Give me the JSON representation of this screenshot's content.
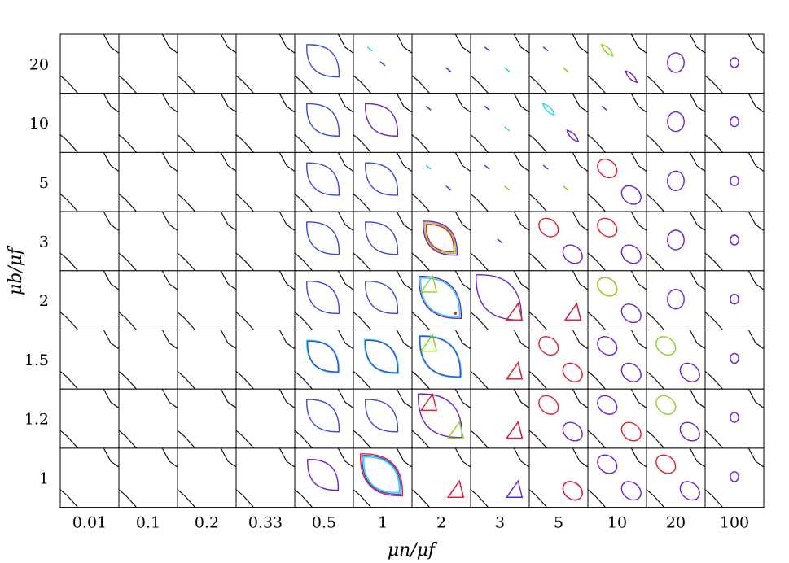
{
  "chart_data": {
    "type": "contour-grid",
    "xlabel": "μn/μf",
    "ylabel": "μb/μf",
    "x_categories": [
      "0.01",
      "0.1",
      "0.2",
      "0.33",
      "0.5",
      "1",
      "2",
      "3",
      "5",
      "10",
      "20",
      "100"
    ],
    "y_categories": [
      "20",
      "10",
      "5",
      "3",
      "2",
      "1.5",
      "1.2",
      "1"
    ],
    "colors": {
      "purple": "#6a1fd6",
      "blue": "#3b47e0",
      "cyan": "#22d8e8",
      "green": "#8ad21e",
      "red": "#e41c2a",
      "frame": "#000000"
    },
    "cells": [
      {
        "row": 0,
        "col": 4,
        "shapes": [
          {
            "kind": "lens",
            "color": "blue",
            "size": 1.0
          }
        ]
      },
      {
        "row": 0,
        "col": 5,
        "shapes": [
          {
            "kind": "dash",
            "color": "cyan",
            "pos": "upper-left"
          },
          {
            "kind": "dash",
            "color": "purple",
            "pos": "center"
          }
        ]
      },
      {
        "row": 0,
        "col": 6,
        "shapes": [
          {
            "kind": "dash",
            "color": "purple",
            "pos": "center-right"
          }
        ]
      },
      {
        "row": 0,
        "col": 7,
        "shapes": [
          {
            "kind": "dash",
            "color": "purple",
            "pos": "upper-left"
          },
          {
            "kind": "dash",
            "color": "cyan",
            "pos": "center-right"
          }
        ]
      },
      {
        "row": 0,
        "col": 8,
        "shapes": [
          {
            "kind": "dash",
            "color": "purple",
            "pos": "upper-left"
          },
          {
            "kind": "dash",
            "color": "green",
            "pos": "center-right"
          }
        ]
      },
      {
        "row": 0,
        "col": 9,
        "shapes": [
          {
            "kind": "leaf",
            "color": "green",
            "pos": "upper"
          },
          {
            "kind": "leaf",
            "color": "purple",
            "pos": "lower-right"
          }
        ]
      },
      {
        "row": 0,
        "col": 10,
        "shapes": [
          {
            "kind": "circle",
            "color": "purple",
            "size": 0.6
          }
        ]
      },
      {
        "row": 0,
        "col": 11,
        "shapes": [
          {
            "kind": "circle",
            "color": "purple",
            "size": 0.3
          }
        ]
      },
      {
        "row": 1,
        "col": 4,
        "shapes": [
          {
            "kind": "lens",
            "color": "blue",
            "size": 1.0
          }
        ]
      },
      {
        "row": 1,
        "col": 5,
        "shapes": [
          {
            "kind": "lens",
            "color": "purple",
            "size": 1.0
          }
        ]
      },
      {
        "row": 1,
        "col": 6,
        "shapes": [
          {
            "kind": "dash",
            "color": "purple",
            "pos": "upper-left"
          }
        ]
      },
      {
        "row": 1,
        "col": 7,
        "shapes": [
          {
            "kind": "dash",
            "color": "purple",
            "pos": "upper-left"
          },
          {
            "kind": "dash",
            "color": "cyan",
            "pos": "center-right"
          }
        ]
      },
      {
        "row": 1,
        "col": 8,
        "shapes": [
          {
            "kind": "leaf",
            "color": "cyan",
            "pos": "upper"
          },
          {
            "kind": "leaf",
            "color": "purple",
            "pos": "lower-right"
          }
        ]
      },
      {
        "row": 1,
        "col": 9,
        "shapes": [
          {
            "kind": "dash",
            "color": "purple",
            "pos": "upper-left"
          }
        ]
      },
      {
        "row": 1,
        "col": 10,
        "shapes": [
          {
            "kind": "circle",
            "color": "purple",
            "size": 0.6
          }
        ]
      },
      {
        "row": 1,
        "col": 11,
        "shapes": [
          {
            "kind": "circle",
            "color": "purple",
            "size": 0.3
          }
        ]
      },
      {
        "row": 2,
        "col": 4,
        "shapes": [
          {
            "kind": "lens",
            "color": "blue",
            "size": 1.0
          }
        ]
      },
      {
        "row": 2,
        "col": 5,
        "shapes": [
          {
            "kind": "lens",
            "color": "blue",
            "size": 1.0
          }
        ]
      },
      {
        "row": 2,
        "col": 6,
        "shapes": [
          {
            "kind": "dash",
            "color": "cyan",
            "pos": "upper-left"
          },
          {
            "kind": "dash",
            "color": "purple",
            "pos": "center-right"
          }
        ]
      },
      {
        "row": 2,
        "col": 7,
        "shapes": [
          {
            "kind": "dash",
            "color": "purple",
            "pos": "upper-left"
          },
          {
            "kind": "dash",
            "color": "green",
            "pos": "center-right"
          }
        ]
      },
      {
        "row": 2,
        "col": 8,
        "shapes": [
          {
            "kind": "dash",
            "color": "purple",
            "pos": "upper-left"
          },
          {
            "kind": "dash",
            "color": "green",
            "pos": "center-right"
          }
        ]
      },
      {
        "row": 2,
        "col": 9,
        "shapes": [
          {
            "kind": "blob",
            "color": "red",
            "pos": "upper"
          },
          {
            "kind": "blob",
            "color": "purple",
            "pos": "lower-right"
          }
        ]
      },
      {
        "row": 2,
        "col": 10,
        "shapes": [
          {
            "kind": "circle",
            "color": "purple",
            "size": 0.6
          }
        ]
      },
      {
        "row": 2,
        "col": 11,
        "shapes": [
          {
            "kind": "circle",
            "color": "purple",
            "size": 0.3
          }
        ]
      },
      {
        "row": 3,
        "col": 4,
        "shapes": [
          {
            "kind": "lens",
            "color": "blue",
            "size": 1.0
          }
        ]
      },
      {
        "row": 3,
        "col": 5,
        "shapes": [
          {
            "kind": "lens",
            "color": "blue",
            "size": 1.0
          }
        ]
      },
      {
        "row": 3,
        "col": 6,
        "shapes": [
          {
            "kind": "lens",
            "color": "purple",
            "size": 1.05
          },
          {
            "kind": "lens",
            "color": "green",
            "size": 0.95
          },
          {
            "kind": "lens",
            "color": "red",
            "size": 0.85
          }
        ]
      },
      {
        "row": 3,
        "col": 7,
        "shapes": [
          {
            "kind": "dash",
            "color": "purple",
            "pos": "center"
          }
        ]
      },
      {
        "row": 3,
        "col": 8,
        "shapes": [
          {
            "kind": "blob",
            "color": "red",
            "pos": "upper"
          },
          {
            "kind": "blob",
            "color": "purple",
            "pos": "lower-right"
          }
        ]
      },
      {
        "row": 3,
        "col": 9,
        "shapes": [
          {
            "kind": "blob",
            "color": "red",
            "pos": "upper"
          },
          {
            "kind": "blob",
            "color": "purple",
            "pos": "lower-right"
          }
        ]
      },
      {
        "row": 3,
        "col": 10,
        "shapes": [
          {
            "kind": "circle",
            "color": "purple",
            "size": 0.6
          }
        ]
      },
      {
        "row": 3,
        "col": 11,
        "shapes": [
          {
            "kind": "circle",
            "color": "purple",
            "size": 0.3
          }
        ]
      },
      {
        "row": 4,
        "col": 4,
        "shapes": [
          {
            "kind": "lens",
            "color": "blue",
            "size": 1.0
          }
        ]
      },
      {
        "row": 4,
        "col": 5,
        "shapes": [
          {
            "kind": "lens",
            "color": "blue",
            "size": 1.0
          }
        ]
      },
      {
        "row": 4,
        "col": 6,
        "shapes": [
          {
            "kind": "lens",
            "color": "purple",
            "size": 1.3
          },
          {
            "kind": "lens",
            "color": "cyan",
            "size": 1.2
          },
          {
            "kind": "tri",
            "color": "green",
            "pos": "upper-left"
          },
          {
            "kind": "dot",
            "color": "red",
            "pos": "lower-right"
          }
        ]
      },
      {
        "row": 4,
        "col": 7,
        "shapes": [
          {
            "kind": "lens",
            "color": "purple",
            "size": 1.4
          },
          {
            "kind": "tri",
            "color": "cyan",
            "pos": "lower-right"
          },
          {
            "kind": "tri",
            "color": "red",
            "pos": "lower-right"
          }
        ]
      },
      {
        "row": 4,
        "col": 8,
        "shapes": [
          {
            "kind": "tri",
            "color": "purple",
            "pos": "lower-right"
          },
          {
            "kind": "tri",
            "color": "red",
            "pos": "lower-right"
          }
        ]
      },
      {
        "row": 4,
        "col": 9,
        "shapes": [
          {
            "kind": "blob",
            "color": "red",
            "pos": "upper"
          },
          {
            "kind": "blob",
            "color": "green",
            "pos": "upper"
          },
          {
            "kind": "blob",
            "color": "purple",
            "pos": "lower-right"
          }
        ]
      },
      {
        "row": 4,
        "col": 10,
        "shapes": [
          {
            "kind": "circle",
            "color": "purple",
            "size": 0.6
          }
        ]
      },
      {
        "row": 4,
        "col": 11,
        "shapes": [
          {
            "kind": "circle",
            "color": "purple",
            "size": 0.3
          }
        ]
      },
      {
        "row": 5,
        "col": 4,
        "shapes": [
          {
            "kind": "lens",
            "color": "cyan",
            "size": 1.0
          },
          {
            "kind": "lens",
            "color": "blue",
            "size": 0.95
          }
        ]
      },
      {
        "row": 5,
        "col": 5,
        "shapes": [
          {
            "kind": "lens",
            "color": "cyan",
            "size": 1.05
          },
          {
            "kind": "lens",
            "color": "blue",
            "size": 1.0
          }
        ]
      },
      {
        "row": 5,
        "col": 6,
        "shapes": [
          {
            "kind": "lens",
            "color": "cyan",
            "size": 1.3
          },
          {
            "kind": "lens",
            "color": "blue",
            "size": 1.25
          },
          {
            "kind": "tri",
            "color": "green",
            "pos": "upper-left"
          }
        ]
      },
      {
        "row": 5,
        "col": 7,
        "shapes": [
          {
            "kind": "tri",
            "color": "purple",
            "pos": "lower-right"
          },
          {
            "kind": "tri",
            "color": "green",
            "pos": "lower-right"
          },
          {
            "kind": "tri",
            "color": "red",
            "pos": "lower-right"
          }
        ]
      },
      {
        "row": 5,
        "col": 8,
        "shapes": [
          {
            "kind": "blob",
            "color": "red",
            "pos": "upper"
          },
          {
            "kind": "blob",
            "color": "red",
            "pos": "lower-right"
          }
        ]
      },
      {
        "row": 5,
        "col": 9,
        "shapes": [
          {
            "kind": "blob",
            "color": "purple",
            "pos": "upper"
          },
          {
            "kind": "blob",
            "color": "purple",
            "pos": "lower-right"
          }
        ]
      },
      {
        "row": 5,
        "col": 10,
        "shapes": [
          {
            "kind": "blob",
            "color": "green",
            "pos": "upper"
          },
          {
            "kind": "blob",
            "color": "purple",
            "pos": "lower-right"
          }
        ]
      },
      {
        "row": 5,
        "col": 11,
        "shapes": [
          {
            "kind": "circle",
            "color": "purple",
            "size": 0.3
          }
        ]
      },
      {
        "row": 6,
        "col": 4,
        "shapes": [
          {
            "kind": "lens",
            "color": "blue",
            "size": 1.0
          }
        ]
      },
      {
        "row": 6,
        "col": 5,
        "shapes": [
          {
            "kind": "lens",
            "color": "blue",
            "size": 1.0
          }
        ]
      },
      {
        "row": 6,
        "col": 6,
        "shapes": [
          {
            "kind": "lens",
            "color": "purple",
            "size": 1.35
          },
          {
            "kind": "tri",
            "color": "red",
            "pos": "upper-left"
          },
          {
            "kind": "tri",
            "color": "green",
            "pos": "lower-right"
          }
        ]
      },
      {
        "row": 6,
        "col": 7,
        "shapes": [
          {
            "kind": "tri",
            "color": "purple",
            "pos": "lower-right"
          },
          {
            "kind": "tri",
            "color": "red",
            "pos": "lower-right"
          }
        ]
      },
      {
        "row": 6,
        "col": 8,
        "shapes": [
          {
            "kind": "blob",
            "color": "red",
            "pos": "upper"
          },
          {
            "kind": "blob",
            "color": "purple",
            "pos": "lower-right"
          }
        ]
      },
      {
        "row": 6,
        "col": 9,
        "shapes": [
          {
            "kind": "blob",
            "color": "purple",
            "pos": "upper"
          },
          {
            "kind": "blob",
            "color": "red",
            "pos": "lower-right"
          }
        ]
      },
      {
        "row": 6,
        "col": 10,
        "shapes": [
          {
            "kind": "blob",
            "color": "green",
            "pos": "upper"
          },
          {
            "kind": "blob",
            "color": "purple",
            "pos": "lower-right"
          }
        ]
      },
      {
        "row": 6,
        "col": 11,
        "shapes": [
          {
            "kind": "circle",
            "color": "purple",
            "size": 0.3
          }
        ]
      },
      {
        "row": 7,
        "col": 4,
        "shapes": [
          {
            "kind": "lens",
            "color": "purple",
            "size": 0.95
          }
        ]
      },
      {
        "row": 7,
        "col": 5,
        "shapes": [
          {
            "kind": "lens",
            "color": "red",
            "size": 1.3
          },
          {
            "kind": "lens",
            "color": "blue",
            "size": 1.2
          },
          {
            "kind": "lens",
            "color": "cyan",
            "size": 1.1
          }
        ]
      },
      {
        "row": 7,
        "col": 6,
        "shapes": [
          {
            "kind": "tri",
            "color": "purple",
            "pos": "lower-right"
          },
          {
            "kind": "tri",
            "color": "red",
            "pos": "lower-right"
          }
        ]
      },
      {
        "row": 7,
        "col": 7,
        "shapes": [
          {
            "kind": "tri",
            "color": "purple",
            "pos": "lower-right"
          }
        ]
      },
      {
        "row": 7,
        "col": 8,
        "shapes": [
          {
            "kind": "blob",
            "color": "purple",
            "pos": "lower-right"
          },
          {
            "kind": "blob",
            "color": "red",
            "pos": "lower-right"
          }
        ]
      },
      {
        "row": 7,
        "col": 9,
        "shapes": [
          {
            "kind": "blob",
            "color": "purple",
            "pos": "upper"
          },
          {
            "kind": "blob",
            "color": "purple",
            "pos": "lower-right"
          }
        ]
      },
      {
        "row": 7,
        "col": 10,
        "shapes": [
          {
            "kind": "blob",
            "color": "red",
            "pos": "upper"
          },
          {
            "kind": "blob",
            "color": "purple",
            "pos": "lower-right"
          }
        ]
      },
      {
        "row": 7,
        "col": 11,
        "shapes": [
          {
            "kind": "circle",
            "color": "purple",
            "size": 0.3
          }
        ]
      }
    ]
  }
}
